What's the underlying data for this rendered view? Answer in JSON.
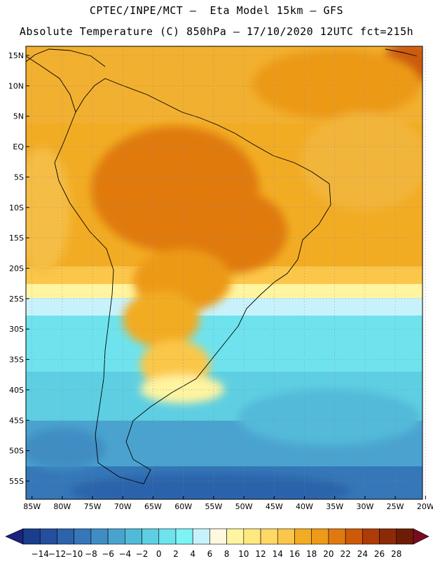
{
  "header": {
    "line1": "CPTEC/INPE/MCT –  Eta Model 15km – GFS",
    "line2": "Absolute Temperature (C) 850hPa – 17/10/2020 12UTC fct=215h"
  },
  "map": {
    "lat_labels": [
      "15N",
      "10N",
      "5N",
      "EQ",
      "5S",
      "10S",
      "15S",
      "20S",
      "25S",
      "30S",
      "35S",
      "40S",
      "45S",
      "50S",
      "55S"
    ],
    "lon_labels": [
      "85W",
      "80W",
      "75W",
      "70W",
      "65W",
      "60W",
      "55W",
      "50W",
      "45W",
      "40W",
      "35W",
      "30W",
      "25W",
      "20W"
    ],
    "lat_values": [
      15,
      10,
      5,
      0,
      -5,
      -10,
      -15,
      -20,
      -25,
      -30,
      -35,
      -40,
      -45,
      -50,
      -55
    ],
    "lon_values": [
      -85,
      -80,
      -75,
      -70,
      -65,
      -60,
      -55,
      -50,
      -45,
      -40,
      -35,
      -30,
      -25,
      -20
    ],
    "lat_range": [
      -58,
      16.5
    ],
    "lon_range": [
      -86,
      -20.5
    ],
    "gridlines": true
  },
  "colorbar": {
    "labels": [
      "-14",
      "-12",
      "-10",
      "-8",
      "-6",
      "-4",
      "-2",
      "0",
      "2",
      "4",
      "6",
      "8",
      "10",
      "12",
      "14",
      "16",
      "18",
      "20",
      "22",
      "24",
      "26",
      "28"
    ],
    "colors": [
      "#1a3d8c",
      "#234f9c",
      "#2c63ab",
      "#3577b8",
      "#3f8dc4",
      "#4aa3cf",
      "#52bad9",
      "#5ecfe2",
      "#6ee3ed",
      "#7ef3f6",
      "#c8f2fb",
      "#fff8e0",
      "#fff4a0",
      "#ffe880",
      "#ffd866",
      "#fbc74a",
      "#f2ac24",
      "#ec9a18",
      "#e07a10",
      "#cc5a0a",
      "#ad3c08",
      "#8c2a06",
      "#6e1c06"
    ],
    "under_color": "#1a237e",
    "over_color": "#7a0a22"
  }
}
